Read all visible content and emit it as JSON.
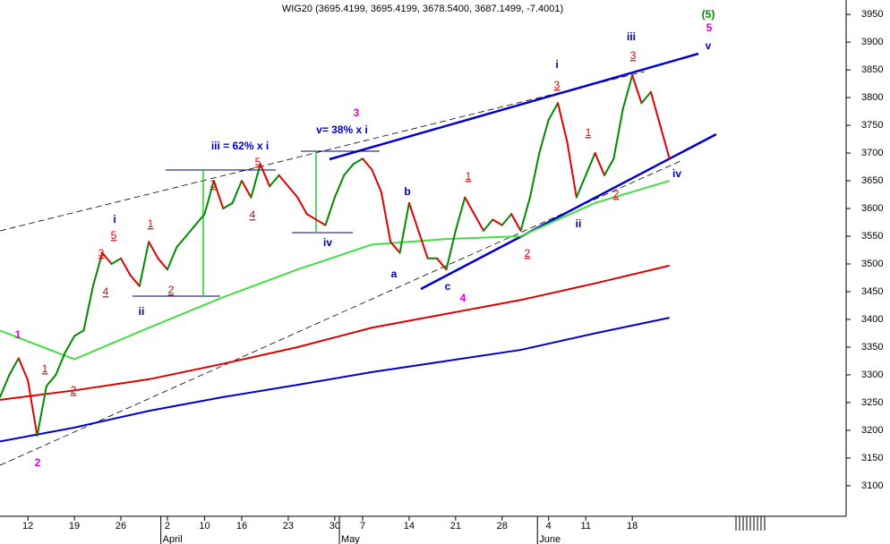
{
  "chart_data": {
    "type": "line",
    "title": "WIG20 (3695.4199, 3695.4199, 3678.5400, 3687.1499, -7.4001)",
    "x": [
      0,
      1,
      2,
      3,
      4,
      5,
      6,
      7,
      8,
      9,
      10,
      11,
      12,
      13,
      14,
      15,
      16,
      17,
      18,
      19,
      20,
      21,
      22,
      23,
      24,
      25,
      26,
      27,
      28,
      29,
      30,
      31,
      32,
      33,
      34,
      35,
      36,
      37,
      38,
      39,
      40,
      41,
      42,
      43,
      44,
      45,
      46,
      47,
      48,
      49,
      50,
      51,
      52,
      53,
      54,
      55,
      56,
      57,
      58,
      59,
      60,
      61,
      62,
      63,
      64,
      65,
      66,
      67,
      68,
      69,
      70,
      71,
      72
    ],
    "series": [
      {
        "name": "WIG20",
        "up_color": "#008a00",
        "down_color": "#e00000",
        "values": [
          3260,
          3300,
          3330,
          3290,
          3190,
          3280,
          3300,
          3340,
          3370,
          3380,
          3460,
          3520,
          3500,
          3510,
          3480,
          3460,
          3540,
          3510,
          3490,
          3530,
          3550,
          3570,
          3590,
          3650,
          3600,
          3610,
          3650,
          3620,
          3680,
          3640,
          3660,
          3640,
          3620,
          3590,
          3580,
          3570,
          3620,
          3660,
          3680,
          3690,
          3670,
          3630,
          3540,
          3520,
          3610,
          3560,
          3510,
          3510,
          3490,
          3560,
          3620,
          3590,
          3560,
          3580,
          3570,
          3590,
          3560,
          3620,
          3700,
          3760,
          3790,
          3720,
          3620,
          3660,
          3700,
          3660,
          3690,
          3780,
          3840,
          3790,
          3810,
          3750,
          3690
        ]
      }
    ],
    "averages": [
      {
        "color": "#44dd44",
        "x": [
          0,
          8,
          16,
          24,
          32,
          40,
          48,
          56,
          64,
          72
        ],
        "values": [
          3380,
          3328,
          3385,
          3440,
          3490,
          3535,
          3545,
          3550,
          3610,
          3650
        ]
      },
      {
        "color": "#dd0000",
        "x": [
          0,
          8,
          16,
          24,
          32,
          40,
          48,
          56,
          64,
          72
        ],
        "values": [
          3255,
          3272,
          3292,
          3320,
          3350,
          3385,
          3410,
          3435,
          3465,
          3497
        ]
      },
      {
        "color": "#0000cc",
        "x": [
          0,
          8,
          16,
          24,
          32,
          40,
          48,
          56,
          64,
          72
        ],
        "values": [
          3180,
          3205,
          3235,
          3260,
          3282,
          3305,
          3325,
          3345,
          3375,
          3403
        ]
      }
    ],
    "xlim": [
      0,
      91
    ],
    "xticks": [
      {
        "value": 3,
        "label": "12"
      },
      {
        "value": 8,
        "label": "19"
      },
      {
        "value": 13,
        "label": "26"
      },
      {
        "value": 18,
        "label": "2"
      },
      {
        "value": 22,
        "label": "10"
      },
      {
        "value": 26,
        "label": "16"
      },
      {
        "value": 31,
        "label": "23"
      },
      {
        "value": 36,
        "label": "30"
      },
      {
        "value": 39,
        "label": "7"
      },
      {
        "value": 44,
        "label": "14"
      },
      {
        "value": 49,
        "label": "21"
      },
      {
        "value": 54,
        "label": "28"
      },
      {
        "value": 59,
        "label": "4"
      },
      {
        "value": 63,
        "label": "11"
      },
      {
        "value": 68,
        "label": "18"
      }
    ],
    "months": [
      {
        "value": 17.3,
        "label": "April"
      },
      {
        "value": 36.5,
        "label": "May"
      },
      {
        "value": 57.8,
        "label": "June"
      }
    ],
    "ylim": [
      3045,
      3976
    ],
    "yticks": [
      3100,
      3150,
      3200,
      3250,
      3300,
      3350,
      3400,
      3450,
      3500,
      3550,
      3600,
      3650,
      3700,
      3750,
      3800,
      3850,
      3900,
      3950
    ],
    "annotations": [
      {
        "text": "1",
        "color": "#dd00dd"
      },
      {
        "text": "2",
        "color": "#dd00dd"
      },
      {
        "text": "1",
        "color": "#dd0000"
      },
      {
        "text": "2",
        "color": "#dd0000"
      },
      {
        "text": "i",
        "color": "#000099"
      },
      {
        "text": "5",
        "color": "#dd0000"
      },
      {
        "text": "3",
        "color": "#dd0000"
      },
      {
        "text": "4",
        "color": "#dd0000"
      },
      {
        "text": "1",
        "color": "#dd0000"
      },
      {
        "text": "ii",
        "color": "#000099"
      },
      {
        "text": "2",
        "color": "#dd0000"
      },
      {
        "text": "iii = 62% x i",
        "color": "#0000cc"
      },
      {
        "text": "3",
        "color": "#dd0000"
      },
      {
        "text": "5",
        "color": "#dd0000"
      },
      {
        "text": "4",
        "color": "#dd0000"
      },
      {
        "text": "v= 38% x i",
        "color": "#0000cc"
      },
      {
        "text": "3",
        "color": "#dd00dd"
      },
      {
        "text": "iv",
        "color": "#000099"
      },
      {
        "text": "b",
        "color": "#000099"
      },
      {
        "text": "a",
        "color": "#000099"
      },
      {
        "text": "1",
        "color": "#dd0000"
      },
      {
        "text": "c",
        "color": "#000099"
      },
      {
        "text": "4",
        "color": "#dd00dd"
      },
      {
        "text": "2",
        "color": "#dd0000"
      },
      {
        "text": "i",
        "color": "#000099"
      },
      {
        "text": "3",
        "color": "#dd0000"
      },
      {
        "text": "1",
        "color": "#dd0000"
      },
      {
        "text": "ii",
        "color": "#000099"
      },
      {
        "text": "2",
        "color": "#dd0000"
      },
      {
        "text": "iii",
        "color": "#000099"
      },
      {
        "text": "3",
        "color": "#dd0000"
      },
      {
        "text": "(5)",
        "color": "#008800"
      },
      {
        "text": "5",
        "color": "#dd00dd"
      },
      {
        "text": "v",
        "color": "#0000cc"
      },
      {
        "text": "iv",
        "color": "#0000cc"
      }
    ]
  }
}
